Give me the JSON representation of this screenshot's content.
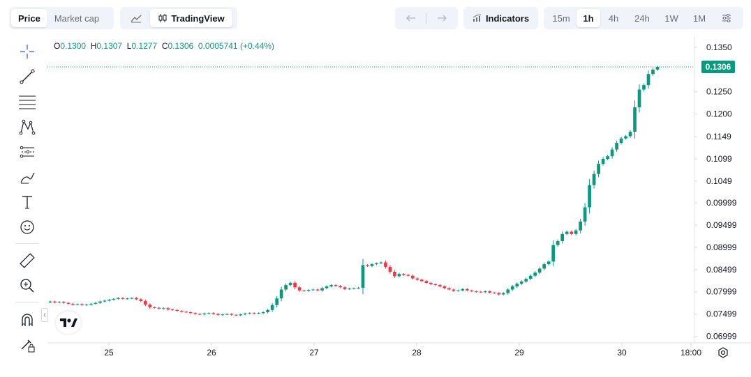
{
  "toolbar": {
    "metric_tabs": [
      "Price",
      "Market cap"
    ],
    "active_metric": "Price",
    "chart_mode_label": "TradingView",
    "indicators_label": "Indicators",
    "timeframes": [
      "15m",
      "1h",
      "4h",
      "24h",
      "1W",
      "1M"
    ],
    "active_timeframe": "1h"
  },
  "left_tools": [
    "crosshair-icon",
    "trendline-icon",
    "fib-lines-icon",
    "pattern-icon",
    "projection-icon",
    "brush-icon",
    "text-icon",
    "emoji-icon",
    "ruler-icon",
    "zoom-in-icon",
    "magnet-icon",
    "lock-draw-icon"
  ],
  "legend": {
    "o_label": "O",
    "o": "0.1300",
    "h_label": "H",
    "h": "0.1307",
    "l_label": "L",
    "l": "0.1277",
    "c_label": "C",
    "c": "0.1306",
    "change": "0.0005741",
    "change_pct": "(+0.44%)"
  },
  "colors": {
    "up": "#089981",
    "down": "#f23645",
    "grid": "#f0f3fa",
    "axis_text": "#131722"
  },
  "chart_data": {
    "type": "candlestick",
    "x_ticks": [
      "25",
      "26",
      "27",
      "28",
      "29",
      "30",
      "18:00"
    ],
    "y_ticks": [
      "0.1350",
      "0.1250",
      "0.1200",
      "0.1149",
      "0.1099",
      "0.1049",
      "0.09999",
      "0.09499",
      "0.08999",
      "0.08499",
      "0.07999",
      "0.07499",
      "0.06999"
    ],
    "y_tick_values": [
      0.135,
      0.125,
      0.12,
      0.1149,
      0.1099,
      0.1049,
      0.09999,
      0.09499,
      0.08999,
      0.08499,
      0.07999,
      0.07499,
      0.06999
    ],
    "ylim": [
      0.0685,
      0.1375
    ],
    "last_price": "0.1306",
    "last_price_value": 0.1306,
    "closes": [
      0.0778,
      0.0776,
      0.0777,
      0.0775,
      0.0773,
      0.0771,
      0.0772,
      0.077,
      0.0771,
      0.0773,
      0.0775,
      0.0778,
      0.078,
      0.0782,
      0.0784,
      0.0786,
      0.0784,
      0.0785,
      0.0786,
      0.0783,
      0.0779,
      0.0771,
      0.0765,
      0.0764,
      0.0762,
      0.0763,
      0.076,
      0.0759,
      0.0757,
      0.0755,
      0.0754,
      0.0752,
      0.075,
      0.0749,
      0.0751,
      0.0752,
      0.075,
      0.0748,
      0.0749,
      0.075,
      0.0748,
      0.0747,
      0.0749,
      0.0751,
      0.0752,
      0.0751,
      0.0752,
      0.0754,
      0.0759,
      0.077,
      0.0785,
      0.0805,
      0.0815,
      0.082,
      0.081,
      0.0803,
      0.0802,
      0.0804,
      0.0805,
      0.0803,
      0.0808,
      0.0812,
      0.0815,
      0.0813,
      0.081,
      0.0806,
      0.0807,
      0.0808,
      0.0809,
      0.086,
      0.0858,
      0.0862,
      0.0864,
      0.0866,
      0.0856,
      0.0845,
      0.0835,
      0.084,
      0.0838,
      0.0836,
      0.083,
      0.0827,
      0.0824,
      0.082,
      0.0817,
      0.0815,
      0.0812,
      0.0808,
      0.0805,
      0.0802,
      0.0803,
      0.0806,
      0.0803,
      0.0801,
      0.08,
      0.0799,
      0.0801,
      0.0798,
      0.0797,
      0.0794,
      0.0797,
      0.0805,
      0.0812,
      0.0818,
      0.0823,
      0.0829,
      0.0836,
      0.0843,
      0.0852,
      0.0862,
      0.0868,
      0.0905,
      0.0914,
      0.093,
      0.0935,
      0.093,
      0.0938,
      0.0958,
      0.099,
      0.104,
      0.1065,
      0.1088,
      0.1099,
      0.1105,
      0.112,
      0.1135,
      0.1145,
      0.115,
      0.116,
      0.1215,
      0.1255,
      0.1265,
      0.129,
      0.13,
      0.1306
    ]
  }
}
